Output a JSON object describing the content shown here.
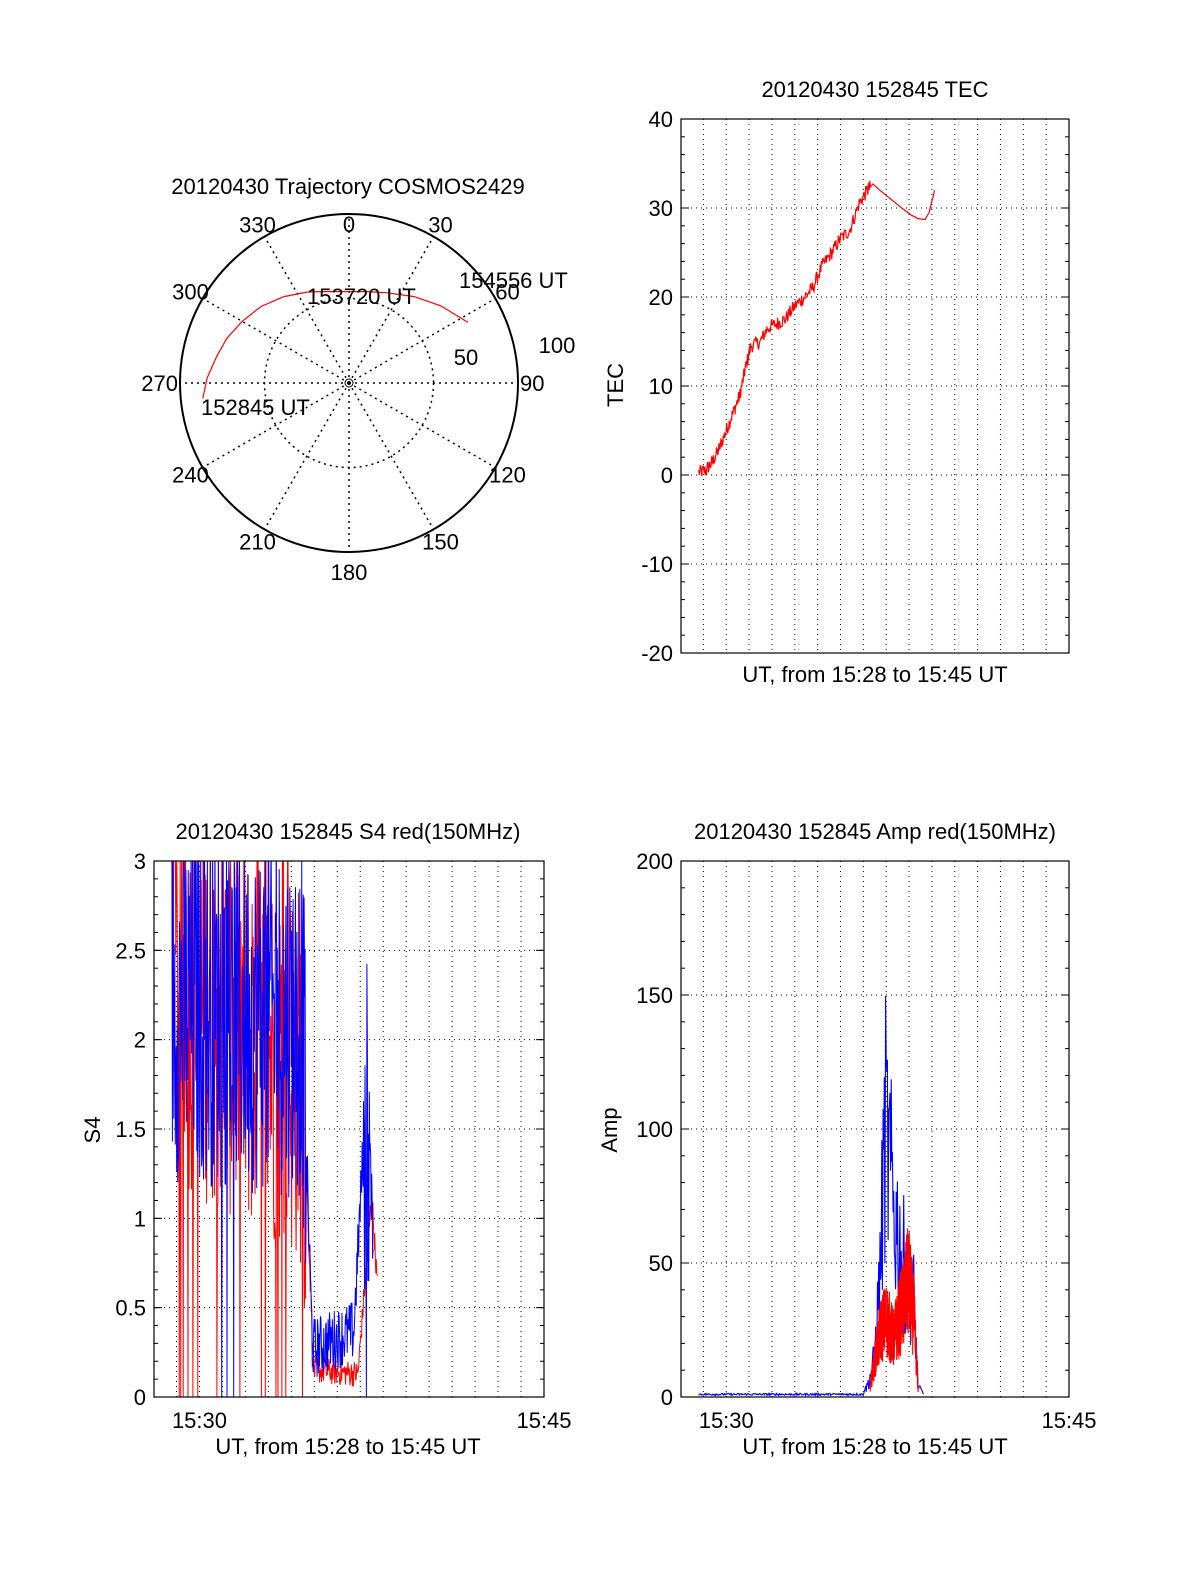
{
  "colors": {
    "red": "#ff0000",
    "blue": "#0000ff",
    "axis": "#000000",
    "grid": "#000000"
  },
  "chart_data": [
    {
      "id": "polar",
      "type": "scatter",
      "subtype": "polar",
      "title": "20120430 Trajectory COSMOS2429",
      "angle_labels": [
        "0",
        "30",
        "60",
        "90",
        "120",
        "150",
        "180",
        "210",
        "240",
        "270",
        "300",
        "330"
      ],
      "radius_labels": [
        "50",
        "100"
      ],
      "rlim": [
        0,
        100
      ],
      "grid": true,
      "annotations": [
        {
          "text": "154556 UT",
          "az": 63,
          "r": 79
        },
        {
          "text": "153720 UT",
          "az": 0,
          "r": 54
        },
        {
          "text": "152845 UT",
          "az": 264,
          "r": 87
        }
      ],
      "series": [
        {
          "color": "red",
          "points": [
            [
              264,
              87
            ],
            [
              272,
              84
            ],
            [
              281,
              80
            ],
            [
              290,
              77
            ],
            [
              300,
              73
            ],
            [
              311,
              69
            ],
            [
              323,
              64
            ],
            [
              336,
              59
            ],
            [
              350,
              55
            ],
            [
              0,
              54
            ],
            [
              10,
              55
            ],
            [
              23,
              58
            ],
            [
              37,
              64
            ],
            [
              50,
              71
            ],
            [
              63,
              79
            ]
          ]
        }
      ]
    },
    {
      "id": "tec",
      "type": "line",
      "title": "20120430 152845 TEC",
      "xlabel": "UT, from 15:28 to 15:45 UT",
      "ylabel": "TEC",
      "xlim": [
        15.467,
        15.75
      ],
      "ylim": [
        -20,
        40
      ],
      "yticks": [
        "-20",
        "-10",
        "0",
        "10",
        "20",
        "30",
        "40"
      ],
      "grid": true,
      "series": [
        {
          "color": "red",
          "points": [
            [
              15.48,
              0.3
            ],
            [
              15.485,
              0.5
            ],
            [
              15.49,
              1.5
            ],
            [
              15.495,
              3
            ],
            [
              15.5,
              5
            ],
            [
              15.505,
              7
            ],
            [
              15.51,
              9
            ],
            [
              15.514,
              12
            ],
            [
              15.518,
              14.5
            ],
            [
              15.525,
              15
            ],
            [
              15.53,
              16.5
            ],
            [
              15.537,
              17
            ],
            [
              15.543,
              17.5
            ],
            [
              15.55,
              19
            ],
            [
              15.557,
              20
            ],
            [
              15.563,
              21
            ],
            [
              15.57,
              23.5
            ],
            [
              15.577,
              25
            ],
            [
              15.583,
              26.5
            ],
            [
              15.59,
              27.5
            ],
            [
              15.597,
              30.5
            ],
            [
              15.603,
              32
            ],
            [
              15.607,
              32.7
            ],
            [
              15.612,
              32
            ],
            [
              15.62,
              31
            ],
            [
              15.628,
              30
            ],
            [
              15.635,
              29.2
            ],
            [
              15.64,
              28.8
            ],
            [
              15.645,
              28.7
            ],
            [
              15.648,
              29.5
            ],
            [
              15.652,
              32
            ]
          ]
        }
      ]
    },
    {
      "id": "s4",
      "type": "line",
      "title": "20120430 152845 S4 red(150MHz)",
      "xlabel": "UT, from 15:28 to 15:45 UT",
      "ylabel": "S4",
      "xlim": [
        15.467,
        15.75
      ],
      "ylim": [
        0,
        3
      ],
      "yticks": [
        "0",
        "0.5",
        "1",
        "1.5",
        "2",
        "2.5",
        "3"
      ],
      "xticks": [
        {
          "value": 15.5,
          "label": "15:30"
        },
        {
          "value": 15.75,
          "label": "15:45"
        }
      ],
      "grid": true,
      "series": [
        {
          "name": "",
          "color": "blue",
          "x_start": 15.48,
          "x_end": 15.63,
          "segments": [
            [
              15.48,
              2.2
            ],
            [
              15.575,
              2.1
            ],
            [
              15.578,
              1.2
            ],
            [
              15.582,
              0.2
            ],
            [
              15.612,
              0.3
            ],
            [
              15.618,
              1.2
            ],
            [
              15.622,
              1.6
            ],
            [
              15.626,
              0.8
            ]
          ]
        },
        {
          "name": "",
          "color": "red",
          "x_start": 15.48,
          "x_end": 15.63,
          "segments": [
            [
              15.48,
              2.3
            ],
            [
              15.575,
              1.8
            ],
            [
              15.58,
              0.7
            ],
            [
              15.583,
              0.12
            ],
            [
              15.615,
              0.1
            ],
            [
              15.62,
              0.6
            ],
            [
              15.625,
              1.1
            ],
            [
              15.629,
              0.6
            ]
          ]
        }
      ]
    },
    {
      "id": "amp",
      "type": "line",
      "title": "20120430 152845 Amp red(150MHz)",
      "xlabel": "UT, from 15:28 to 15:45 UT",
      "ylabel": "Amp",
      "xlim": [
        15.467,
        15.75
      ],
      "ylim": [
        0,
        200
      ],
      "yticks": [
        "0",
        "50",
        "100",
        "150",
        "200"
      ],
      "xticks": [
        {
          "value": 15.5,
          "label": "15:30"
        },
        {
          "value": 15.75,
          "label": "15:45"
        }
      ],
      "grid": true,
      "series": [
        {
          "name": "",
          "color": "blue",
          "segments": [
            [
              15.48,
              1
            ],
            [
              15.6,
              1
            ],
            [
              15.604,
              8
            ],
            [
              15.608,
              20
            ],
            [
              15.612,
              60
            ],
            [
              15.616,
              140
            ],
            [
              15.62,
              110
            ],
            [
              15.626,
              80
            ],
            [
              15.632,
              60
            ],
            [
              15.637,
              50
            ],
            [
              15.64,
              5
            ],
            [
              15.644,
              1
            ]
          ]
        },
        {
          "name": "",
          "color": "red",
          "segments": [
            [
              15.605,
              5
            ],
            [
              15.609,
              22
            ],
            [
              15.613,
              35
            ],
            [
              15.617,
              40
            ],
            [
              15.622,
              30
            ],
            [
              15.628,
              45
            ],
            [
              15.633,
              60
            ],
            [
              15.637,
              40
            ],
            [
              15.64,
              3
            ]
          ]
        }
      ]
    }
  ]
}
